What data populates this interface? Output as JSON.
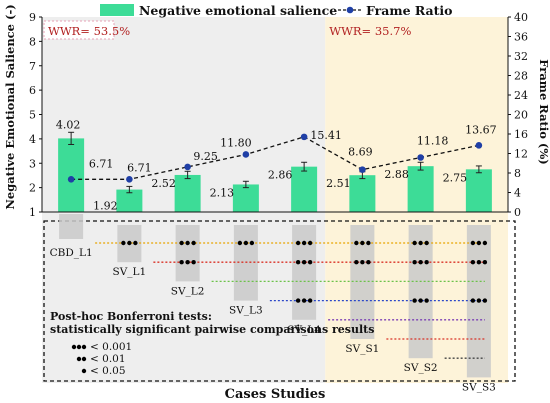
{
  "chart_data": {
    "type": "bar",
    "categories": [
      "CBD_L1",
      "SV_L1",
      "SV_L2",
      "SV_L3",
      "SV_L4",
      "SV_S1",
      "SV_S2",
      "SV_S3"
    ],
    "series": [
      {
        "name": "Negative emotional salience",
        "type": "bar",
        "axis": "left",
        "values": [
          4.02,
          1.92,
          2.52,
          2.13,
          2.86,
          2.51,
          2.88,
          2.75
        ],
        "value_labels": [
          "4.02",
          "1.92",
          "2.52",
          "2.13",
          "2.86",
          "2.51",
          "2.88",
          "2.75"
        ],
        "error_bars": [
          0.25,
          0.13,
          0.15,
          0.13,
          0.18,
          0.14,
          0.16,
          0.14
        ],
        "color": "#3ddc97"
      },
      {
        "name": "Frame Ratio",
        "type": "line",
        "axis": "right",
        "values": [
          6.71,
          6.71,
          9.25,
          11.8,
          15.41,
          8.69,
          11.18,
          13.67
        ],
        "value_labels": [
          "6.71",
          "6.71",
          "9.25",
          "11.80",
          "15.41",
          "8.69",
          "11.18",
          "13.67"
        ],
        "color": "#1f3fa6"
      }
    ],
    "xlabel": "Cases Studies",
    "ylabel": "Negative Emotional Salience (-)",
    "y2label": "Frame Ratio (%)",
    "ylim": [
      1,
      9
    ],
    "y2lim": [
      0,
      40
    ],
    "yticks": [
      "1",
      "2",
      "3",
      "4",
      "5",
      "6",
      "7",
      "8",
      "9"
    ],
    "y2ticks": [
      "0",
      "4",
      "8",
      "12",
      "16",
      "20",
      "24",
      "28",
      "32",
      "36",
      "40"
    ],
    "regions": [
      {
        "label": "WWR= 53.5%",
        "from": 0,
        "to": 4,
        "color": "#eeeeee"
      },
      {
        "label": "WWR= 35.7%",
        "from": 5,
        "to": 7,
        "color": "#fdf3d9"
      }
    ],
    "legend_position": "top",
    "grid": false,
    "pairwise": {
      "title_line1": "Post-hoc Bonferroni tests:",
      "title_line2": "statistically significant pairwise comparisons results",
      "key": [
        {
          "label": "< 0.001",
          "dots": 3
        },
        {
          "label": "< 0.01",
          "dots": 2
        },
        {
          "label": "< 0.05",
          "dots": 1
        }
      ],
      "rows": [
        {
          "case": 0,
          "color": "#e8a400",
          "marks": [
            {
              "col": 1,
              "dots": 3
            },
            {
              "col": 2,
              "dots": 3
            },
            {
              "col": 3,
              "dots": 3
            },
            {
              "col": 4,
              "dots": 3
            },
            {
              "col": 5,
              "dots": 3
            },
            {
              "col": 6,
              "dots": 3
            },
            {
              "col": 7,
              "dots": 3
            }
          ]
        },
        {
          "case": 1,
          "color": "#d93025",
          "marks": [
            {
              "col": 2,
              "dots": 3
            },
            {
              "col": 4,
              "dots": 3
            },
            {
              "col": 5,
              "dots": 3
            },
            {
              "col": 6,
              "dots": 3
            },
            {
              "col": 7,
              "dots": 3
            }
          ]
        },
        {
          "case": 2,
          "color": "#6cc24a",
          "marks": []
        },
        {
          "case": 3,
          "color": "#2a46c8",
          "marks": [
            {
              "col": 4,
              "dots": 3
            },
            {
              "col": 6,
              "dots": 3
            },
            {
              "col": 7,
              "dots": 3
            }
          ]
        },
        {
          "case": 4,
          "color": "#7b3fb5",
          "marks": []
        },
        {
          "case": 5,
          "color": "#d93025",
          "marks": []
        },
        {
          "case": 6,
          "color": "#444444",
          "marks": []
        }
      ]
    }
  }
}
